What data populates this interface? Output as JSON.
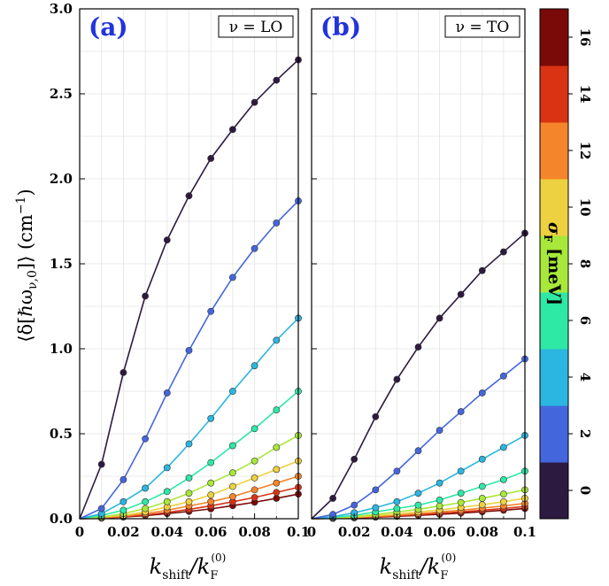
{
  "chart_data": [
    {
      "type": "line",
      "panel_label": "(a)",
      "panel_box_text": "ν = LO",
      "ylabel": "⟨δ[ℏω_{ν,0}]⟩ (cm⁻¹)",
      "xlabel": "k_shift/k_F^(0)",
      "xlim": [
        0,
        0.1
      ],
      "ylim": [
        0,
        3.0
      ],
      "x_ticks": [
        "0",
        "0.02",
        "0.04",
        "0.06",
        "0.08",
        "0.1"
      ],
      "y_ticks": [
        "0.0",
        "0.5",
        "1.0",
        "1.5",
        "2.0",
        "2.5",
        "3.0"
      ],
      "grid": true,
      "x": [
        0,
        0.01,
        0.02,
        0.03,
        0.04,
        0.05,
        0.06,
        0.07,
        0.08,
        0.09,
        0.1
      ],
      "series": [
        {
          "sigma": 0,
          "color": "#2d1a40",
          "values": [
            0,
            0.32,
            0.86,
            1.31,
            1.64,
            1.9,
            2.12,
            2.29,
            2.45,
            2.58,
            2.7
          ]
        },
        {
          "sigma": 2,
          "color": "#4466dd",
          "values": [
            0,
            0.06,
            0.23,
            0.47,
            0.74,
            0.99,
            1.22,
            1.42,
            1.59,
            1.74,
            1.87
          ]
        },
        {
          "sigma": 4,
          "color": "#2ab6e0",
          "values": [
            0,
            0.03,
            0.1,
            0.18,
            0.3,
            0.44,
            0.59,
            0.75,
            0.9,
            1.05,
            1.18
          ]
        },
        {
          "sigma": 6,
          "color": "#2ee8a5",
          "values": [
            0,
            0.02,
            0.05,
            0.1,
            0.16,
            0.24,
            0.33,
            0.43,
            0.53,
            0.64,
            0.75
          ]
        },
        {
          "sigma": 8,
          "color": "#a8e83a",
          "values": [
            0,
            0.01,
            0.03,
            0.06,
            0.1,
            0.15,
            0.21,
            0.27,
            0.34,
            0.42,
            0.49
          ]
        },
        {
          "sigma": 10,
          "color": "#eed140",
          "values": [
            0,
            0.01,
            0.02,
            0.04,
            0.07,
            0.1,
            0.14,
            0.19,
            0.24,
            0.29,
            0.34
          ]
        },
        {
          "sigma": 12,
          "color": "#f5852a",
          "values": [
            0,
            0.005,
            0.015,
            0.03,
            0.05,
            0.075,
            0.1,
            0.13,
            0.17,
            0.21,
            0.25
          ]
        },
        {
          "sigma": 14,
          "color": "#d93314",
          "values": [
            0,
            0.004,
            0.012,
            0.022,
            0.037,
            0.055,
            0.076,
            0.1,
            0.125,
            0.155,
            0.185
          ]
        },
        {
          "sigma": 16,
          "color": "#7a0a08",
          "values": [
            0,
            0.003,
            0.01,
            0.018,
            0.03,
            0.043,
            0.058,
            0.077,
            0.097,
            0.12,
            0.145
          ]
        }
      ]
    },
    {
      "type": "line",
      "panel_label": "(b)",
      "panel_box_text": "ν = TO",
      "xlabel": "k_shift/k_F^(0)",
      "xlim": [
        0,
        0.1
      ],
      "ylim": [
        0,
        3.0
      ],
      "x_ticks": [
        "0",
        "0.02",
        "0.04",
        "0.06",
        "0.08",
        "0.1"
      ],
      "grid": true,
      "x": [
        0,
        0.01,
        0.02,
        0.03,
        0.04,
        0.05,
        0.06,
        0.07,
        0.08,
        0.09,
        0.1
      ],
      "series": [
        {
          "sigma": 0,
          "color": "#2d1a40",
          "values": [
            0,
            0.12,
            0.35,
            0.6,
            0.82,
            1.01,
            1.18,
            1.32,
            1.46,
            1.57,
            1.68
          ]
        },
        {
          "sigma": 2,
          "color": "#4466dd",
          "values": [
            0,
            0.025,
            0.08,
            0.17,
            0.28,
            0.4,
            0.52,
            0.63,
            0.74,
            0.84,
            0.94
          ]
        },
        {
          "sigma": 4,
          "color": "#2ab6e0",
          "values": [
            0,
            0.012,
            0.035,
            0.065,
            0.1,
            0.15,
            0.21,
            0.28,
            0.35,
            0.42,
            0.49
          ]
        },
        {
          "sigma": 6,
          "color": "#2ee8a5",
          "values": [
            0,
            0.008,
            0.02,
            0.04,
            0.06,
            0.08,
            0.11,
            0.15,
            0.19,
            0.23,
            0.28
          ]
        },
        {
          "sigma": 8,
          "color": "#a8e83a",
          "values": [
            0,
            0.005,
            0.013,
            0.025,
            0.04,
            0.055,
            0.075,
            0.095,
            0.12,
            0.145,
            0.17
          ]
        },
        {
          "sigma": 10,
          "color": "#eed140",
          "values": [
            0,
            0.004,
            0.01,
            0.018,
            0.028,
            0.04,
            0.052,
            0.066,
            0.082,
            0.1,
            0.12
          ]
        },
        {
          "sigma": 12,
          "color": "#f5852a",
          "values": [
            0,
            0.003,
            0.008,
            0.014,
            0.021,
            0.03,
            0.04,
            0.05,
            0.062,
            0.075,
            0.09
          ]
        },
        {
          "sigma": 14,
          "color": "#d93314",
          "values": [
            0,
            0.002,
            0.006,
            0.011,
            0.017,
            0.024,
            0.032,
            0.04,
            0.05,
            0.06,
            0.072
          ]
        },
        {
          "sigma": 16,
          "color": "#7a0a08",
          "values": [
            0,
            0.002,
            0.005,
            0.009,
            0.014,
            0.02,
            0.026,
            0.033,
            0.041,
            0.05,
            0.06
          ]
        }
      ]
    }
  ],
  "colorbar": {
    "label": "σ_F [meV]",
    "ticks": [
      "0",
      "2",
      "4",
      "6",
      "8",
      "10",
      "12",
      "14",
      "16"
    ],
    "bands": [
      "#2d1a40",
      "#4466dd",
      "#2ab6e0",
      "#2ee8a5",
      "#a8e83a",
      "#eed140",
      "#f5852a",
      "#d93314",
      "#7a0a08"
    ]
  }
}
